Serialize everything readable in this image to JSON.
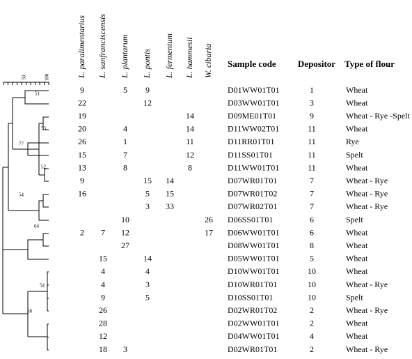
{
  "scale": {
    "ticks": [
      "50",
      "100"
    ]
  },
  "bootstrap": [
    "51",
    "53",
    "77",
    "52",
    "54",
    "64",
    "54",
    "58"
  ],
  "table": {
    "species": [
      "L. paralimentarius",
      "L. sanfranciscensis",
      "L. plantarum",
      "L. pontis",
      "L. fermentum",
      "L. hammesii",
      "W. cibaria"
    ],
    "columns": [
      "Sample code",
      "Depositor",
      "Type of flour"
    ],
    "rows": [
      {
        "counts": [
          9,
          null,
          5,
          9,
          null,
          null,
          null
        ],
        "code": "D01WW01T01",
        "depositor": 1,
        "flour": "Wheat"
      },
      {
        "counts": [
          22,
          null,
          null,
          12,
          null,
          null,
          null
        ],
        "code": "D03WW01T01",
        "depositor": 3,
        "flour": "Wheat"
      },
      {
        "counts": [
          19,
          null,
          null,
          null,
          null,
          14,
          null
        ],
        "code": "D09ME01T01",
        "depositor": 9,
        "flour": "Wheat - Rye -Spelt"
      },
      {
        "counts": [
          20,
          null,
          4,
          null,
          null,
          14,
          null
        ],
        "code": "D11WW02T01",
        "depositor": 11,
        "flour": "Wheat"
      },
      {
        "counts": [
          26,
          null,
          1,
          null,
          null,
          11,
          null
        ],
        "code": "D11RR01T01",
        "depositor": 11,
        "flour": "Rye"
      },
      {
        "counts": [
          15,
          null,
          7,
          null,
          null,
          12,
          null
        ],
        "code": "D11SS01T01",
        "depositor": 11,
        "flour": "Spelt"
      },
      {
        "counts": [
          13,
          null,
          8,
          null,
          null,
          8,
          null
        ],
        "code": "D11WW01T01",
        "depositor": 11,
        "flour": "Wheat"
      },
      {
        "counts": [
          9,
          null,
          null,
          15,
          14,
          null,
          null
        ],
        "code": "D07WR01T01",
        "depositor": 7,
        "flour": "Wheat - Rye"
      },
      {
        "counts": [
          16,
          null,
          null,
          5,
          15,
          null,
          null
        ],
        "code": "D07WR01T02",
        "depositor": 7,
        "flour": "Wheat - Rye"
      },
      {
        "counts": [
          null,
          null,
          null,
          3,
          33,
          null,
          null
        ],
        "code": "D07WR02T01",
        "depositor": 7,
        "flour": "Wheat - Rye"
      },
      {
        "counts": [
          null,
          null,
          10,
          null,
          null,
          null,
          26
        ],
        "code": "D06SS01T01",
        "depositor": 6,
        "flour": "Spelt"
      },
      {
        "counts": [
          2,
          7,
          12,
          null,
          null,
          null,
          17
        ],
        "code": "D06WW01T01",
        "depositor": 6,
        "flour": "Wheat"
      },
      {
        "counts": [
          null,
          null,
          27,
          null,
          null,
          null,
          null
        ],
        "code": "D08WW01T01",
        "depositor": 8,
        "flour": "Wheat"
      },
      {
        "counts": [
          null,
          15,
          null,
          14,
          null,
          null,
          null
        ],
        "code": "D05WW01T01",
        "depositor": 5,
        "flour": "Wheat"
      },
      {
        "counts": [
          null,
          4,
          null,
          4,
          null,
          null,
          null
        ],
        "code": "D10WW01T01",
        "depositor": 10,
        "flour": "Wheat"
      },
      {
        "counts": [
          null,
          4,
          null,
          3,
          null,
          null,
          null
        ],
        "code": "D10WR01T01",
        "depositor": 10,
        "flour": "Wheat - Rye"
      },
      {
        "counts": [
          null,
          9,
          null,
          5,
          null,
          null,
          null
        ],
        "code": "D10SS01T01",
        "depositor": 10,
        "flour": "Spelt"
      },
      {
        "counts": [
          null,
          26,
          null,
          null,
          null,
          null,
          null
        ],
        "code": "D02WR01T02",
        "depositor": 2,
        "flour": "Wheat - Rye"
      },
      {
        "counts": [
          null,
          28,
          null,
          null,
          null,
          null,
          null
        ],
        "code": "D02WW01T01",
        "depositor": 2,
        "flour": "Wheat"
      },
      {
        "counts": [
          null,
          12,
          null,
          null,
          null,
          null,
          null
        ],
        "code": "D04WW01T01",
        "depositor": 4,
        "flour": "Wheat"
      },
      {
        "counts": [
          null,
          18,
          3,
          null,
          null,
          null,
          null
        ],
        "code": "D02WR01T01",
        "depositor": 2,
        "flour": "Wheat - Rye"
      }
    ]
  }
}
